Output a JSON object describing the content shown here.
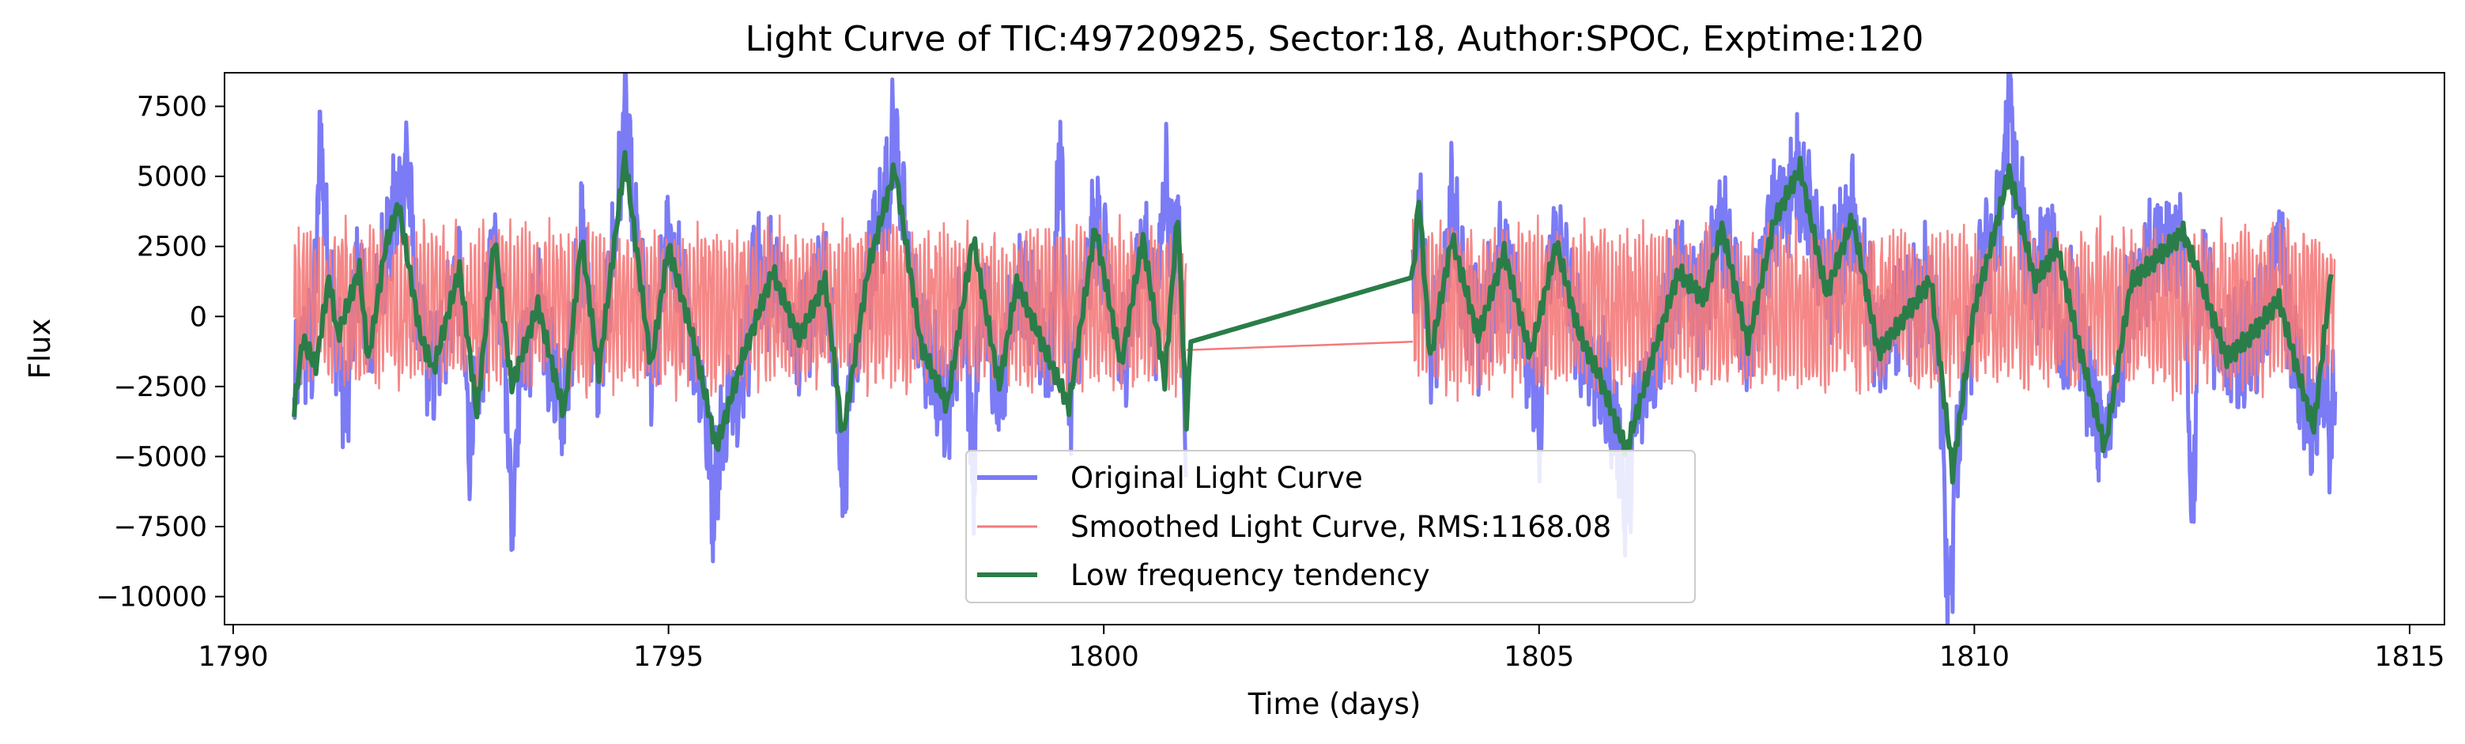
{
  "chart_data": {
    "type": "line",
    "title": "Light Curve of TIC:49720925, Sector:18, Author:SPOC, Exptime:120",
    "xlabel": "Time (days)",
    "ylabel": "Flux",
    "xlim": [
      1789.9,
      1815.4
    ],
    "ylim": [
      -11000,
      8700
    ],
    "xticks": [
      1790,
      1795,
      1800,
      1805,
      1810,
      1815
    ],
    "yticks": [
      -10000,
      -7500,
      -5000,
      -2500,
      0,
      2500,
      5000,
      7500
    ],
    "xtick_labels": [
      "1790",
      "1795",
      "1800",
      "1805",
      "1810",
      "1815"
    ],
    "ytick_labels": [
      "−10000",
      "−7500",
      "−5000",
      "−2500",
      "0",
      "2500",
      "5000",
      "7500"
    ],
    "grid": false,
    "legend": {
      "placement": "lower-center"
    },
    "gap": [
      1800.95,
      1803.55
    ],
    "series": [
      {
        "name": "Original Light Curve",
        "color": "#7b7bf5",
        "samples": [
          [
            1790.7,
            -3000
          ],
          [
            1791.0,
            6000
          ],
          [
            1791.3,
            -3500
          ],
          [
            1792.0,
            5500
          ],
          [
            1792.7,
            -4000
          ],
          [
            1793.2,
            -6900
          ],
          [
            1794.5,
            7400
          ],
          [
            1795.5,
            -6300
          ],
          [
            1796.0,
            2000
          ],
          [
            1797.0,
            -6000
          ],
          [
            1797.6,
            6800
          ],
          [
            1798.5,
            -5500
          ],
          [
            1799.5,
            6000
          ],
          [
            1800.0,
            2500
          ],
          [
            1800.7,
            5000
          ],
          [
            1801.0,
            -3500
          ],
          [
            1803.6,
            2500
          ],
          [
            1804.0,
            4000
          ],
          [
            1805.0,
            -4500
          ],
          [
            1806.0,
            -7000
          ],
          [
            1808.0,
            5000
          ],
          [
            1809.7,
            -10000
          ],
          [
            1810.4,
            7800
          ],
          [
            1811.0,
            -2500
          ],
          [
            1812.5,
            -6600
          ],
          [
            1813.5,
            3500
          ],
          [
            1814.1,
            -4000
          ]
        ]
      },
      {
        "name": "Smoothed Light Curve, RMS:1168.08",
        "color": "#f47a7a",
        "amplitude_range": [
          -3600,
          4600
        ]
      },
      {
        "name": "Low frequency tendency",
        "color": "#2a7d48",
        "values": [
          [
            1790.7,
            -3300
          ],
          [
            1790.8,
            -800
          ],
          [
            1790.95,
            -1800
          ],
          [
            1791.1,
            1400
          ],
          [
            1791.2,
            -700
          ],
          [
            1791.45,
            1700
          ],
          [
            1791.55,
            -1600
          ],
          [
            1791.75,
            2500
          ],
          [
            1791.9,
            4000
          ],
          [
            1792.15,
            -700
          ],
          [
            1792.3,
            -1900
          ],
          [
            1792.6,
            1700
          ],
          [
            1792.8,
            -3500
          ],
          [
            1793.0,
            2800
          ],
          [
            1793.2,
            -2500
          ],
          [
            1793.5,
            400
          ],
          [
            1793.8,
            -3500
          ],
          [
            1794.0,
            2800
          ],
          [
            1794.2,
            -2000
          ],
          [
            1794.5,
            5700
          ],
          [
            1794.8,
            -1800
          ],
          [
            1795.0,
            2500
          ],
          [
            1795.3,
            -1000
          ],
          [
            1795.55,
            -4700
          ],
          [
            1795.85,
            -1500
          ],
          [
            1796.2,
            1600
          ],
          [
            1796.5,
            -800
          ],
          [
            1796.8,
            1300
          ],
          [
            1797.0,
            -4300
          ],
          [
            1797.3,
            1800
          ],
          [
            1797.6,
            5300
          ],
          [
            1797.9,
            -1000
          ],
          [
            1798.2,
            -3200
          ],
          [
            1798.5,
            2800
          ],
          [
            1798.8,
            -2500
          ],
          [
            1799.0,
            1200
          ],
          [
            1799.3,
            -1000
          ],
          [
            1799.6,
            -3200
          ],
          [
            1799.9,
            3200
          ],
          [
            1800.2,
            -1700
          ],
          [
            1800.45,
            2800
          ],
          [
            1800.7,
            -2300
          ],
          [
            1800.85,
            3700
          ],
          [
            1800.95,
            -3800
          ],
          [
            1801.0,
            -900
          ],
          [
            1803.55,
            1400
          ],
          [
            1803.62,
            4300
          ],
          [
            1803.75,
            -1500
          ],
          [
            1804.0,
            2800
          ],
          [
            1804.3,
            -700
          ],
          [
            1804.6,
            2300
          ],
          [
            1804.9,
            -1400
          ],
          [
            1805.2,
            2600
          ],
          [
            1805.45,
            -500
          ],
          [
            1805.7,
            -2200
          ],
          [
            1806.0,
            -4800
          ],
          [
            1806.3,
            -1500
          ],
          [
            1806.6,
            1600
          ],
          [
            1806.9,
            600
          ],
          [
            1807.1,
            3200
          ],
          [
            1807.4,
            -1000
          ],
          [
            1807.7,
            3400
          ],
          [
            1808.0,
            5300
          ],
          [
            1808.3,
            800
          ],
          [
            1808.6,
            3500
          ],
          [
            1808.9,
            -1300
          ],
          [
            1809.2,
            0
          ],
          [
            1809.5,
            1300
          ],
          [
            1809.75,
            -5600
          ],
          [
            1810.0,
            300
          ],
          [
            1810.2,
            2600
          ],
          [
            1810.4,
            5200
          ],
          [
            1810.7,
            1200
          ],
          [
            1810.95,
            2500
          ],
          [
            1811.2,
            -1000
          ],
          [
            1811.5,
            -4700
          ],
          [
            1811.8,
            1200
          ],
          [
            1812.1,
            2100
          ],
          [
            1812.4,
            3000
          ],
          [
            1812.6,
            1300
          ],
          [
            1812.9,
            -1500
          ],
          [
            1813.2,
            -600
          ],
          [
            1813.5,
            600
          ],
          [
            1813.7,
            -1800
          ],
          [
            1813.9,
            -4000
          ],
          [
            1814.1,
            1500
          ]
        ]
      }
    ]
  }
}
